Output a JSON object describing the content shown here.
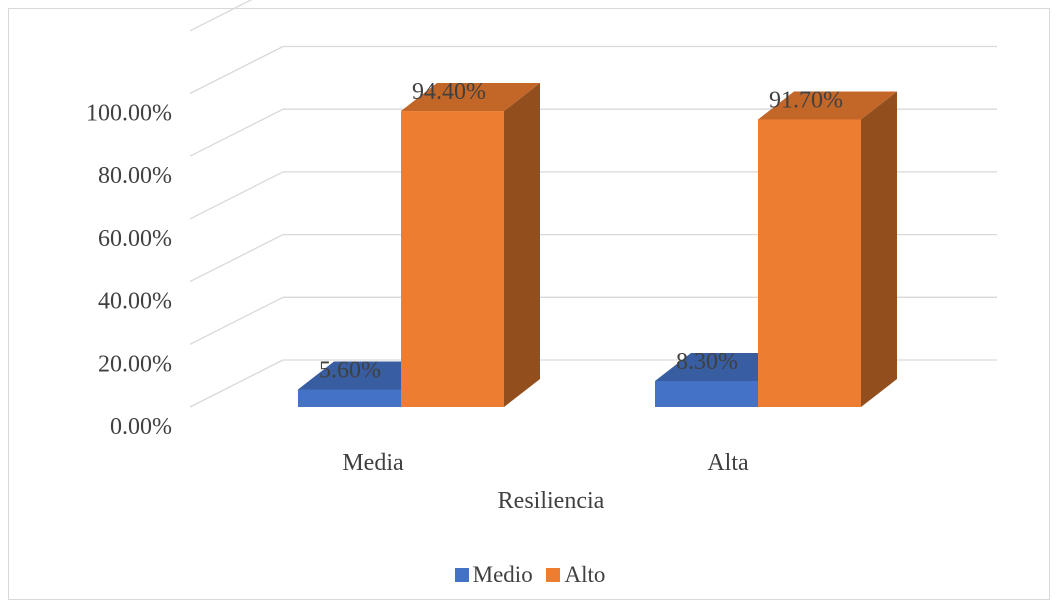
{
  "chart_data": {
    "type": "bar",
    "title": "",
    "xlabel": "Resiliencia",
    "ylabel": "",
    "categories": [
      "Media",
      "Alta"
    ],
    "series": [
      {
        "name": "Medio",
        "values": [
          5.6,
          8.3
        ],
        "labels": [
          "5.60%",
          "8.30%"
        ],
        "color": "#4472c4"
      },
      {
        "name": "Alto",
        "values": [
          94.4,
          91.7
        ],
        "labels": [
          "94.40%",
          "91.70%"
        ],
        "color": "#ed7d31"
      }
    ],
    "ylim": [
      0,
      100
    ],
    "yticks": [
      "0.00%",
      "20.00%",
      "40.00%",
      "60.00%",
      "80.00%",
      "100.00%"
    ],
    "grid": true,
    "legend_position": "bottom",
    "style": "3d-clustered-column"
  }
}
